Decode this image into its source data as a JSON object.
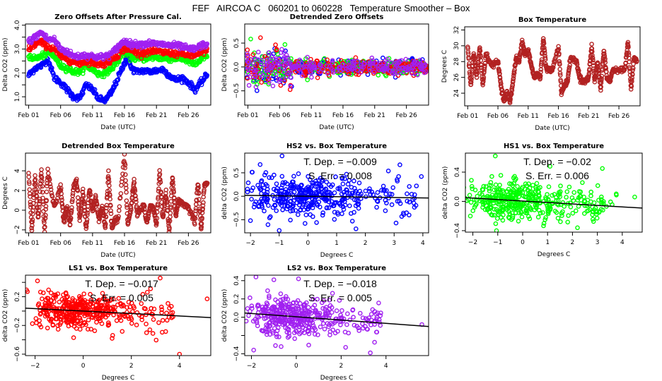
{
  "page_title": "FEF   AIRCOA C   060201 to 060228   Temperature Smoother – Box",
  "chart_data": [
    {
      "id": "zero-offsets",
      "type": "scatter",
      "title": "Zero Offsets After Pressure Cal.",
      "xlabel": "Date (UTC)",
      "ylabel": "Delta CO2 (ppm)",
      "x_ticks": [
        "Feb 01",
        "Feb 06",
        "Feb 11",
        "Feb 16",
        "Feb 21",
        "Feb 26"
      ],
      "y_ticks": [
        "1.0",
        "",
        "2.0",
        "",
        "3.0",
        "",
        "4.0"
      ],
      "y_tick_values": [
        1.0,
        1.5,
        2.0,
        2.5,
        3.0,
        3.5,
        4.0
      ],
      "xlim": [
        0.5,
        29.5
      ],
      "ylim": [
        0.65,
        4.05
      ],
      "series": [
        {
          "name": "HS2",
          "color": "#0000ff",
          "x": [
            1,
            2,
            3,
            4,
            5,
            6,
            7,
            8,
            9,
            10,
            11,
            12,
            13,
            14,
            15,
            16,
            16.5,
            17,
            18,
            19,
            20,
            21,
            22,
            23,
            24,
            25,
            26,
            27,
            28,
            29
          ],
          "y": [
            1.9,
            2.2,
            2.3,
            2.6,
            1.8,
            1.6,
            1.3,
            1.0,
            0.95,
            1.5,
            1.3,
            0.9,
            0.85,
            1.2,
            1.8,
            2.4,
            2.8,
            2.2,
            2.05,
            2.1,
            2.05,
            2.1,
            2.15,
            1.9,
            1.7,
            1.8,
            1.6,
            1.3,
            1.6,
            1.95
          ]
        },
        {
          "name": "HS1",
          "color": "#00ff00",
          "x": [
            1,
            2,
            3,
            4,
            5,
            6,
            7,
            8,
            9,
            10,
            11,
            12,
            13,
            14,
            15,
            16,
            17,
            18,
            19,
            20,
            21,
            22,
            23,
            24,
            25,
            26,
            27,
            28,
            29
          ],
          "y": [
            2.7,
            2.6,
            2.7,
            2.85,
            2.7,
            2.3,
            2.2,
            2.05,
            2.05,
            2.3,
            2.15,
            1.95,
            2.0,
            2.2,
            2.5,
            2.9,
            2.65,
            2.6,
            2.6,
            2.65,
            2.65,
            2.6,
            2.6,
            2.6,
            2.6,
            2.5,
            2.35,
            2.55,
            2.7
          ]
        },
        {
          "name": "LS1",
          "color": "#ff0000",
          "x": [
            1,
            2,
            3,
            4,
            5,
            6,
            7,
            8,
            9,
            10,
            11,
            12,
            13,
            14,
            15,
            16,
            17,
            18,
            19,
            20,
            21,
            22,
            23,
            24,
            25,
            26,
            27,
            28,
            29
          ],
          "y": [
            3.0,
            3.2,
            3.3,
            3.1,
            3.0,
            2.7,
            2.6,
            2.45,
            2.4,
            2.5,
            2.45,
            2.35,
            2.4,
            2.55,
            2.75,
            3.05,
            2.95,
            2.85,
            2.85,
            2.9,
            2.9,
            2.85,
            2.85,
            2.8,
            2.8,
            2.75,
            2.7,
            2.85,
            2.95
          ]
        },
        {
          "name": "LS2",
          "color": "#a020f0",
          "x": [
            1,
            2,
            3,
            4,
            5,
            6,
            7,
            8,
            9,
            10,
            11,
            12,
            13,
            14,
            15,
            16,
            17,
            18,
            19,
            20,
            21,
            22,
            23,
            24,
            25,
            26,
            27,
            28,
            29
          ],
          "y": [
            3.3,
            3.5,
            3.7,
            3.4,
            3.4,
            3.0,
            2.9,
            2.7,
            2.7,
            2.75,
            2.7,
            2.65,
            2.7,
            2.8,
            3.1,
            3.35,
            3.2,
            3.2,
            3.2,
            3.25,
            3.2,
            3.2,
            3.15,
            3.15,
            3.1,
            3.0,
            3.0,
            3.15,
            3.2
          ]
        }
      ]
    },
    {
      "id": "detrended-zero-offsets",
      "type": "scatter",
      "title": "Detrended Zero Offsets",
      "xlabel": "Date (UTC)",
      "ylabel": "Delta CO2 (ppm)",
      "x_ticks": [
        "Feb 01",
        "Feb 06",
        "Feb 11",
        "Feb 16",
        "Feb 21",
        "Feb 26"
      ],
      "y_ticks": [
        "−0.5",
        "0.0",
        "0.5"
      ],
      "y_tick_values": [
        -0.5,
        0.0,
        0.5
      ],
      "xlim": [
        0.5,
        29.5
      ],
      "ylim": [
        -0.8,
        0.9
      ],
      "series": [
        {
          "name": "HS2",
          "color": "#0000ff",
          "spread": [
            0.35,
            0.12
          ]
        },
        {
          "name": "HS1",
          "color": "#00ff00",
          "spread": [
            0.3,
            0.12
          ]
        },
        {
          "name": "LS1",
          "color": "#ff0000",
          "spread": [
            0.3,
            0.12
          ]
        },
        {
          "name": "LS2",
          "color": "#a020f0",
          "spread": [
            0.3,
            0.12
          ]
        }
      ]
    },
    {
      "id": "box-temperature",
      "type": "scatter",
      "title": "Box Temperature",
      "xlabel": "Date (UTC)",
      "ylabel": "Degrees C",
      "x_ticks": [
        "Feb 01",
        "Feb 06",
        "Feb 11",
        "Feb 16",
        "Feb 21",
        "Feb 26"
      ],
      "y_ticks": [
        "24",
        "26",
        "28",
        "30",
        "32"
      ],
      "y_tick_values": [
        24,
        26,
        28,
        30,
        32
      ],
      "xlim": [
        0.5,
        29.5
      ],
      "ylim": [
        22.4,
        32.4
      ],
      "series": [
        {
          "name": "Box",
          "color": "#b22222",
          "x": [
            1,
            1.5,
            2,
            2.5,
            3,
            3.5,
            4,
            5,
            6,
            6.5,
            7,
            7.5,
            8,
            8.5,
            9,
            9.5,
            10,
            10.5,
            11,
            11.5,
            12,
            12.5,
            13,
            13.5,
            14,
            14.5,
            15,
            16,
            16.5,
            17,
            17.5,
            18,
            19,
            19.5,
            20,
            20.5,
            21,
            21.5,
            22,
            22.5,
            23,
            23.5,
            24,
            24.5,
            25,
            26,
            27,
            27.5,
            28,
            28.5,
            29
          ],
          "y": [
            30,
            25,
            29,
            26,
            30,
            25,
            29,
            27.5,
            28,
            25,
            23,
            24,
            23,
            25.5,
            28.5,
            28,
            30.5,
            29,
            29.5,
            27.5,
            26,
            26.5,
            26,
            31,
            27,
            27,
            27,
            30,
            24,
            25,
            25.5,
            28.5,
            28,
            26,
            25.5,
            25.5,
            26,
            30,
            25.5,
            28,
            24.5,
            29.5,
            26,
            25.5,
            27,
            27,
            27,
            30.5,
            24.5,
            28.5,
            28
          ]
        }
      ]
    },
    {
      "id": "detrended-box-temperature",
      "type": "scatter",
      "title": "Detrended Box Temperature",
      "xlabel": "Date (UTC)",
      "ylabel": "Degrees C",
      "x_ticks": [
        "Feb 01",
        "Feb 06",
        "Feb 11",
        "Feb 16",
        "Feb 21",
        "Feb 26"
      ],
      "y_ticks": [
        "−2",
        "0",
        "2",
        "4"
      ],
      "y_tick_values": [
        -2,
        0,
        2,
        4
      ],
      "xlim": [
        0.5,
        29.5
      ],
      "ylim": [
        -2.3,
        5.8
      ],
      "series": [
        {
          "name": "Box",
          "color": "#b22222",
          "x": [
            1,
            1.5,
            2,
            2.5,
            3,
            3.5,
            4,
            5,
            6,
            6.5,
            7,
            7.5,
            8,
            8.5,
            9,
            9.5,
            10,
            10.5,
            11,
            11.5,
            12,
            12.5,
            13,
            13.5,
            14,
            14.5,
            15,
            16,
            16.5,
            17,
            17.5,
            18,
            19,
            19.5,
            20,
            20.5,
            21,
            21.5,
            22,
            22.5,
            23,
            23.5,
            24,
            24.5,
            25,
            26,
            27,
            27.5,
            28,
            28.5,
            29
          ],
          "y": [
            3.8,
            -2,
            3.4,
            -1,
            4,
            -2.1,
            3.9,
            0.3,
            2.5,
            -1.2,
            0.3,
            -1.5,
            2.3,
            3,
            -1,
            2,
            -2,
            2.2,
            0,
            1.3,
            -1,
            0.3,
            -1.8,
            3.8,
            -1.8,
            -1,
            -1,
            5.6,
            -1.5,
            0.2,
            3,
            -0.5,
            0.5,
            -1.3,
            0.3,
            0.3,
            -1.5,
            3.9,
            -1,
            1.8,
            -2.2,
            3.3,
            -0.5,
            1,
            0.7,
            0.3,
            -1.2,
            2.9,
            -2,
            2.5,
            2.8
          ]
        }
      ]
    },
    {
      "id": "hs2-vs-box",
      "type": "scatter",
      "title": "HS2 vs. Box Temperature",
      "xlabel": "Degrees C",
      "ylabel": "delta CO2 (ppm)",
      "x_ticks": [
        "−2",
        "−1",
        "0",
        "1",
        "2",
        "3",
        "4"
      ],
      "x_tick_values": [
        -2,
        -1,
        0,
        1,
        2,
        3,
        4
      ],
      "y_ticks": [
        "−0.5",
        "0.0",
        "0.5"
      ],
      "y_tick_values": [
        -0.5,
        0.0,
        0.5
      ],
      "xlim": [
        -2.2,
        4.2
      ],
      "ylim": [
        -0.78,
        0.92
      ],
      "color": "#0000ff",
      "slope": -0.009,
      "intercept": 0.0,
      "t_dep_label": "T. Dep. =  −0.009",
      "s_err_label": "S. Err. =  0.008",
      "cloud": {
        "x_center": -0.3,
        "x_spread": 0.9,
        "y_spread": 0.2,
        "n": 420,
        "outliers": [
          [
            -0.9,
            0.86
          ],
          [
            3.2,
            0.67
          ],
          [
            3.95,
            0.42
          ],
          [
            -1,
            -0.73
          ],
          [
            -2,
            -0.52
          ],
          [
            -0.1,
            -0.58
          ],
          [
            2.8,
            0.54
          ],
          [
            0.3,
            -0.56
          ]
        ]
      }
    },
    {
      "id": "hs1-vs-box",
      "type": "scatter",
      "title": "HS1 vs. Box Temperature",
      "xlabel": "Degrees C",
      "ylabel": "delta CO2 (ppm)",
      "x_ticks": [
        "−2",
        "−1",
        "0",
        "1",
        "2",
        "3",
        "4"
      ],
      "x_tick_values": [
        -2,
        -1,
        0,
        1,
        2,
        3,
        4
      ],
      "y_ticks": [
        "−0.4",
        "0.0",
        "0.4"
      ],
      "y_tick_values": [
        -0.4,
        0.0,
        0.4
      ],
      "xlim": [
        -2.3,
        4.8
      ],
      "ylim": [
        -0.42,
        0.66
      ],
      "color": "#00ff00",
      "slope": -0.02,
      "intercept": 0.005,
      "t_dep_label": "T. Dep. =  −0.02",
      "s_err_label": "S. Err. =  0.006",
      "cloud": {
        "x_center": -0.4,
        "x_spread": 0.85,
        "y_spread": 0.12,
        "n": 420,
        "outliers": [
          [
            -1.1,
            0.62
          ],
          [
            3.2,
            0.45
          ],
          [
            4.5,
            0.06
          ],
          [
            -1.05,
            -0.4
          ],
          [
            -2.1,
            -0.2
          ],
          [
            2.2,
            -0.36
          ],
          [
            1.1,
            0.48
          ]
        ]
      }
    },
    {
      "id": "ls1-vs-box",
      "type": "scatter",
      "title": "LS1 vs. Box Temperature",
      "xlabel": "Degrees C",
      "ylabel": "delta CO2 (ppm)",
      "x_ticks": [
        "−2",
        "0",
        "2",
        "4"
      ],
      "x_tick_values": [
        -2,
        0,
        2,
        4
      ],
      "y_ticks": [
        "−0.6",
        "−0.2",
        "0.2"
      ],
      "y_tick_values": [
        -0.6,
        -0.2,
        0.2
      ],
      "y_minor_values": [
        -0.4,
        0.0,
        0.4
      ],
      "xlim": [
        -2.4,
        5.3
      ],
      "ylim": [
        -0.62,
        0.5
      ],
      "color": "#ff0000",
      "slope": -0.017,
      "intercept": 0.0,
      "t_dep_label": "T. Dep. =  −0.017",
      "s_err_label": "S. Err. =  0.005",
      "cloud": {
        "x_center": -0.4,
        "x_spread": 0.85,
        "y_spread": 0.12,
        "n": 420,
        "outliers": [
          [
            3.2,
            0.46
          ],
          [
            5.15,
            0.17
          ],
          [
            4.0,
            -0.6
          ],
          [
            -1.9,
            0.42
          ],
          [
            1.2,
            -0.38
          ],
          [
            -0.4,
            -0.37
          ],
          [
            2.8,
            0.31
          ]
        ]
      }
    },
    {
      "id": "ls2-vs-box",
      "type": "scatter",
      "title": "LS2 vs. Box Temperature",
      "xlabel": "Degrees C",
      "ylabel": "delta CO2 (ppm)",
      "x_ticks": [
        "−2",
        "0",
        "2",
        "4"
      ],
      "x_tick_values": [
        -2,
        0,
        2,
        4
      ],
      "y_ticks": [
        "−0.4",
        "0.0",
        "0.2",
        "0.4"
      ],
      "y_tick_values": [
        -0.4,
        0.0,
        0.2,
        0.4
      ],
      "y_minor_values": [
        -0.2
      ],
      "xlim": [
        -2.3,
        5.9
      ],
      "ylim": [
        -0.42,
        0.46
      ],
      "color": "#a020f0",
      "slope": -0.018,
      "intercept": 0.005,
      "t_dep_label": "T. Dep. =  −0.018",
      "s_err_label": "S. Err. =  0.005",
      "cloud": {
        "x_center": -0.4,
        "x_spread": 0.85,
        "y_spread": 0.1,
        "n": 420,
        "outliers": [
          [
            -1.8,
            0.44
          ],
          [
            5.6,
            -0.08
          ],
          [
            3.3,
            -0.39
          ],
          [
            -1.9,
            -0.36
          ],
          [
            -1,
            0.41
          ],
          [
            0.1,
            0.42
          ],
          [
            2.2,
            -0.33
          ]
        ]
      }
    }
  ]
}
